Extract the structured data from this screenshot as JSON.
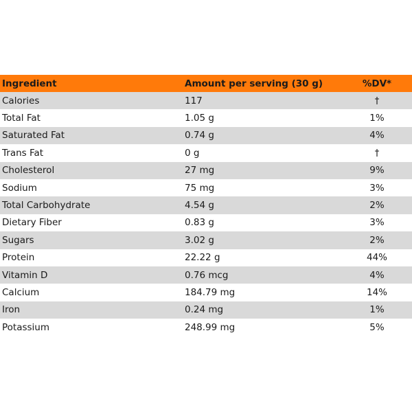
{
  "table": {
    "headers": {
      "ingredient": "Ingredient",
      "amount": "Amount per serving (30 g)",
      "dv": "%DV*"
    },
    "rows": [
      {
        "name": "Calories",
        "amount": "117",
        "dv": "†"
      },
      {
        "name": "Total Fat",
        "amount": "1.05 g",
        "dv": "1%"
      },
      {
        "name": "Saturated Fat",
        "amount": "0.74 g",
        "dv": "4%"
      },
      {
        "name": "Trans Fat",
        "amount": "0 g",
        "dv": "†"
      },
      {
        "name": "Cholesterol",
        "amount": "27 mg",
        "dv": "9%"
      },
      {
        "name": "Sodium",
        "amount": "75 mg",
        "dv": "3%"
      },
      {
        "name": "Total Carbohydrate",
        "amount": "4.54 g",
        "dv": "2%"
      },
      {
        "name": "Dietary Fiber",
        "amount": "0.83 g",
        "dv": "3%"
      },
      {
        "name": "Sugars",
        "amount": "3.02 g",
        "dv": "2%"
      },
      {
        "name": "Protein",
        "amount": "22.22 g",
        "dv": "44%"
      },
      {
        "name": "Vitamin D",
        "amount": "0.76 mcg",
        "dv": "4%"
      },
      {
        "name": "Calcium",
        "amount": "184.79 mg",
        "dv": "14%"
      },
      {
        "name": "Iron",
        "amount": "0.24 mg",
        "dv": "1%"
      },
      {
        "name": "Potassium",
        "amount": "248.99 mg",
        "dv": "5%"
      }
    ]
  },
  "colors": {
    "header_background": "#ff7a0a",
    "row_shade": "#d9d9d9",
    "row_plain": "#ffffff"
  }
}
